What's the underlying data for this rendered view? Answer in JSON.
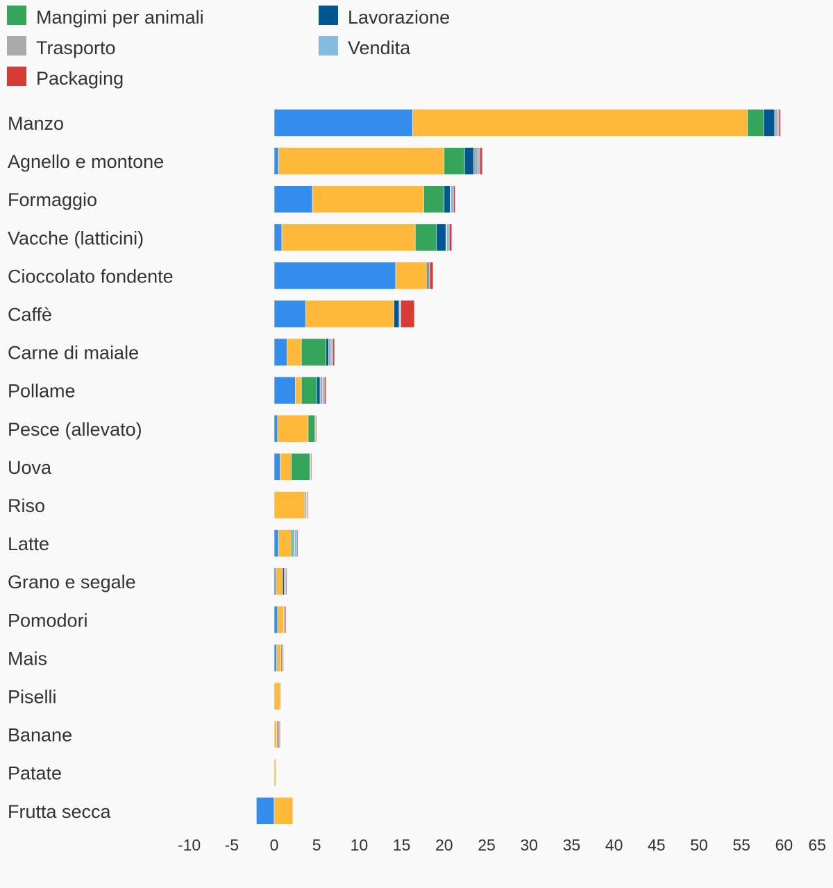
{
  "chart_data": {
    "type": "bar",
    "orientation": "horizontal",
    "stacked": true,
    "title": "",
    "xlabel": "",
    "ylabel": "",
    "xlim": [
      -10,
      65
    ],
    "x_ticks": [
      -10,
      -5,
      0,
      5,
      10,
      15,
      20,
      25,
      30,
      35,
      40,
      45,
      50,
      55,
      60,
      65
    ],
    "grid": false,
    "legend_position": "top-left",
    "categories": [
      "Manzo",
      "Agnello e montone",
      "Formaggio",
      "Vacche (latticini)",
      "Cioccolato fondente",
      "Caffè",
      "Carne di maiale",
      "Pollame",
      "Pesce (allevato)",
      "Uova",
      "Riso",
      "Latte",
      "Grano e segale",
      "Pomodori",
      "Mais",
      "Piselli",
      "Banane",
      "Patate",
      "Frutta secca"
    ],
    "series": [
      {
        "name": "",
        "color": "#348ded",
        "values": [
          16.3,
          0.5,
          4.5,
          0.9,
          14.3,
          3.7,
          1.5,
          2.5,
          0.4,
          0.7,
          0.0,
          0.5,
          0.2,
          0.4,
          0.3,
          0.0,
          0.0,
          0.0,
          -2.1
        ]
      },
      {
        "name": "",
        "color": "#feb93a",
        "values": [
          39.4,
          19.5,
          13.1,
          15.7,
          3.7,
          10.4,
          1.7,
          0.7,
          3.6,
          1.3,
          3.6,
          1.5,
          0.8,
          0.7,
          0.5,
          0.7,
          0.3,
          0.2,
          2.2
        ]
      },
      {
        "name": "Mangimi per animali",
        "color": "#34a55b",
        "values": [
          1.9,
          2.4,
          2.4,
          2.5,
          0.0,
          0.0,
          2.9,
          1.8,
          0.8,
          2.2,
          0.0,
          0.2,
          0.0,
          0.0,
          0.0,
          0.0,
          0.0,
          0.0,
          0.0
        ]
      },
      {
        "name": "Lavorazione",
        "color": "#00568f",
        "values": [
          1.3,
          1.1,
          0.7,
          1.1,
          0.2,
          0.6,
          0.3,
          0.4,
          0.0,
          0.0,
          0.1,
          0.1,
          0.2,
          0.0,
          0.1,
          0.0,
          0.0,
          0.0,
          0.0
        ]
      },
      {
        "name": "Trasporto",
        "color": "#aaaaaa",
        "values": [
          0.3,
          0.5,
          0.1,
          0.1,
          0.1,
          0.1,
          0.3,
          0.3,
          0.1,
          0.1,
          0.1,
          0.1,
          0.1,
          0.2,
          0.1,
          0.1,
          0.3,
          0.0,
          0.0
        ]
      },
      {
        "name": "Vendita",
        "color": "#85bbe1",
        "values": [
          0.2,
          0.2,
          0.3,
          0.3,
          0.0,
          0.1,
          0.2,
          0.2,
          0.0,
          0.0,
          0.1,
          0.3,
          0.1,
          0.0,
          0.0,
          0.0,
          0.0,
          0.0,
          0.0
        ]
      },
      {
        "name": "Packaging",
        "color": "#d73b35",
        "values": [
          0.2,
          0.3,
          0.2,
          0.3,
          0.4,
          1.6,
          0.2,
          0.2,
          0.1,
          0.1,
          0.1,
          0.1,
          0.1,
          0.1,
          0.1,
          0.0,
          0.1,
          0.0,
          0.0
        ]
      }
    ]
  }
}
